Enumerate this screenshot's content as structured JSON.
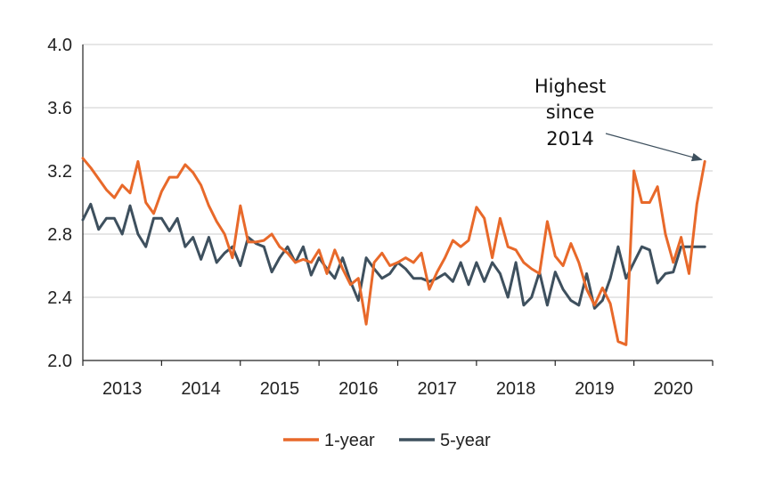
{
  "chart_data": {
    "type": "line",
    "title": "",
    "xlabel": "",
    "ylabel": "",
    "ylim": [
      2.0,
      4.0
    ],
    "yticks": [
      "2.0",
      "2.4",
      "2.8",
      "3.2",
      "3.6",
      "4.0"
    ],
    "xlim": [
      2013.0,
      2021.0
    ],
    "year_labels": [
      "2013",
      "2014",
      "2015",
      "2016",
      "2017",
      "2018",
      "2019",
      "2020"
    ],
    "grid": "horizontal",
    "legend_position": "bottom",
    "annotation": {
      "lines": [
        "Highest",
        "since",
        "2014"
      ],
      "x": 2020.95,
      "y": 3.26
    },
    "colors": {
      "1-year": "#e8692a",
      "5-year": "#3e505e",
      "grid": "#cccccc",
      "axis": "#222222"
    },
    "series": [
      {
        "name": "1-year",
        "x": [
          2013.0,
          2013.1,
          2013.2,
          2013.3,
          2013.4,
          2013.5,
          2013.6,
          2013.7,
          2013.8,
          2013.9,
          2014.0,
          2014.1,
          2014.2,
          2014.3,
          2014.4,
          2014.5,
          2014.6,
          2014.7,
          2014.8,
          2014.9,
          2015.0,
          2015.1,
          2015.2,
          2015.3,
          2015.4,
          2015.5,
          2015.6,
          2015.7,
          2015.8,
          2015.9,
          2016.0,
          2016.1,
          2016.2,
          2016.3,
          2016.4,
          2016.5,
          2016.6,
          2016.7,
          2016.8,
          2016.9,
          2017.0,
          2017.1,
          2017.2,
          2017.3,
          2017.4,
          2017.5,
          2017.6,
          2017.7,
          2017.8,
          2017.9,
          2018.0,
          2018.1,
          2018.2,
          2018.3,
          2018.4,
          2018.5,
          2018.6,
          2018.7,
          2018.8,
          2018.9,
          2019.0,
          2019.1,
          2019.2,
          2019.3,
          2019.4,
          2019.5,
          2019.6,
          2019.7,
          2019.8,
          2019.9,
          2020.0,
          2020.1,
          2020.2,
          2020.3,
          2020.4,
          2020.5,
          2020.6,
          2020.7,
          2020.8,
          2020.9
        ],
        "y": [
          3.28,
          3.22,
          3.15,
          3.08,
          3.03,
          3.11,
          3.06,
          3.26,
          3.0,
          2.93,
          3.07,
          3.16,
          3.16,
          3.24,
          3.19,
          3.11,
          2.98,
          2.88,
          2.8,
          2.65,
          2.98,
          2.75,
          2.75,
          2.76,
          2.8,
          2.72,
          2.68,
          2.62,
          2.64,
          2.62,
          2.7,
          2.55,
          2.7,
          2.58,
          2.48,
          2.52,
          2.23,
          2.62,
          2.68,
          2.6,
          2.62,
          2.65,
          2.62,
          2.68,
          2.45,
          2.56,
          2.65,
          2.76,
          2.72,
          2.76,
          2.97,
          2.9,
          2.65,
          2.9,
          2.72,
          2.7,
          2.62,
          2.58,
          2.55,
          2.88,
          2.66,
          2.6,
          2.74,
          2.62,
          2.45,
          2.35,
          2.46,
          2.36,
          2.12,
          2.1,
          3.2,
          3.0,
          3.0,
          3.1,
          2.8,
          2.62,
          2.78,
          2.55,
          2.99,
          3.26
        ]
      },
      {
        "name": "5-year",
        "x": [
          2013.0,
          2013.1,
          2013.2,
          2013.3,
          2013.4,
          2013.5,
          2013.6,
          2013.7,
          2013.8,
          2013.9,
          2014.0,
          2014.1,
          2014.2,
          2014.3,
          2014.4,
          2014.5,
          2014.6,
          2014.7,
          2014.8,
          2014.9,
          2015.0,
          2015.1,
          2015.2,
          2015.3,
          2015.4,
          2015.5,
          2015.6,
          2015.7,
          2015.8,
          2015.9,
          2016.0,
          2016.1,
          2016.2,
          2016.3,
          2016.4,
          2016.5,
          2016.6,
          2016.7,
          2016.8,
          2016.9,
          2017.0,
          2017.1,
          2017.2,
          2017.3,
          2017.4,
          2017.5,
          2017.6,
          2017.7,
          2017.8,
          2017.9,
          2018.0,
          2018.1,
          2018.2,
          2018.3,
          2018.4,
          2018.5,
          2018.6,
          2018.7,
          2018.8,
          2018.9,
          2019.0,
          2019.1,
          2019.2,
          2019.3,
          2019.4,
          2019.5,
          2019.6,
          2019.7,
          2019.8,
          2019.9,
          2020.0,
          2020.1,
          2020.2,
          2020.3,
          2020.4,
          2020.5,
          2020.6,
          2020.7,
          2020.8,
          2020.9
        ],
        "y": [
          2.89,
          2.99,
          2.83,
          2.9,
          2.9,
          2.8,
          2.98,
          2.8,
          2.72,
          2.9,
          2.9,
          2.82,
          2.9,
          2.72,
          2.78,
          2.64,
          2.78,
          2.62,
          2.68,
          2.72,
          2.6,
          2.78,
          2.74,
          2.72,
          2.56,
          2.65,
          2.72,
          2.62,
          2.72,
          2.54,
          2.65,
          2.58,
          2.52,
          2.65,
          2.5,
          2.38,
          2.65,
          2.58,
          2.52,
          2.55,
          2.62,
          2.58,
          2.52,
          2.52,
          2.5,
          2.52,
          2.55,
          2.5,
          2.62,
          2.48,
          2.62,
          2.5,
          2.62,
          2.55,
          2.4,
          2.62,
          2.35,
          2.4,
          2.56,
          2.35,
          2.56,
          2.45,
          2.38,
          2.35,
          2.55,
          2.33,
          2.38,
          2.52,
          2.72,
          2.52,
          2.62,
          2.72,
          2.7,
          2.49,
          2.55,
          2.56,
          2.72,
          2.72,
          2.72,
          2.72
        ]
      }
    ]
  }
}
